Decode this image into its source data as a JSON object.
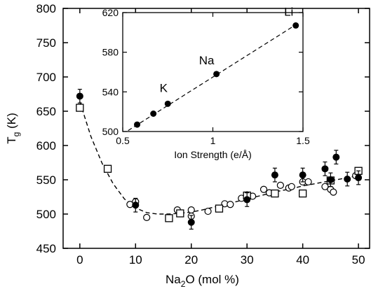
{
  "chart_data": [
    {
      "type": "scatter",
      "title": "",
      "xlabel": "Na2O (mol %)",
      "xlabel_parts": {
        "base": "Na",
        "sub": "2",
        "rest": "O (mol %)"
      },
      "ylabel": "Tg (K)",
      "ylabel_parts": {
        "base": "T",
        "sub": "g",
        "rest": " (K)"
      },
      "xlim": [
        -3,
        52
      ],
      "ylim": [
        450,
        800
      ],
      "xticks": [
        0,
        10,
        20,
        30,
        40,
        50
      ],
      "yticks": [
        450,
        500,
        550,
        600,
        650,
        700,
        750,
        800
      ],
      "grid": false,
      "series": [
        {
          "marker": "filled-circle",
          "points": [
            {
              "x": 0,
              "y": 672,
              "err": 10
            },
            {
              "x": 10,
              "y": 513,
              "err": 10
            },
            {
              "x": 20,
              "y": 488,
              "err": 10
            },
            {
              "x": 30,
              "y": 521,
              "err": 10
            },
            {
              "x": 35,
              "y": 557,
              "err": 10
            },
            {
              "x": 40,
              "y": 557,
              "err": 10
            },
            {
              "x": 44,
              "y": 566,
              "err": 10
            },
            {
              "x": 45,
              "y": 550,
              "err": 10
            },
            {
              "x": 46,
              "y": 583,
              "err": 10
            },
            {
              "x": 48,
              "y": 551,
              "err": 10
            },
            {
              "x": 50,
              "y": 553,
              "err": 10
            }
          ]
        },
        {
          "marker": "open-square",
          "points": [
            {
              "x": 0,
              "y": 655
            },
            {
              "x": 5,
              "y": 566
            },
            {
              "x": 16,
              "y": 494
            },
            {
              "x": 18,
              "y": 501
            },
            {
              "x": 25,
              "y": 508
            },
            {
              "x": 30,
              "y": 527
            },
            {
              "x": 35,
              "y": 530
            },
            {
              "x": 40,
              "y": 530
            },
            {
              "x": 45,
              "y": 549
            },
            {
              "x": 50,
              "y": 563
            }
          ]
        },
        {
          "marker": "open-circle",
          "points": [
            {
              "x": 9,
              "y": 514
            },
            {
              "x": 10,
              "y": 518
            },
            {
              "x": 12,
              "y": 495
            },
            {
              "x": 17.5,
              "y": 506
            },
            {
              "x": 20,
              "y": 506
            },
            {
              "x": 20,
              "y": 497
            },
            {
              "x": 23,
              "y": 504
            },
            {
              "x": 26,
              "y": 515
            },
            {
              "x": 27,
              "y": 514
            },
            {
              "x": 29,
              "y": 523
            },
            {
              "x": 30,
              "y": 528
            },
            {
              "x": 31,
              "y": 526
            },
            {
              "x": 33,
              "y": 536
            },
            {
              "x": 34,
              "y": 531
            },
            {
              "x": 36,
              "y": 542
            },
            {
              "x": 37.5,
              "y": 538
            },
            {
              "x": 38,
              "y": 540
            },
            {
              "x": 40,
              "y": 547
            },
            {
              "x": 41,
              "y": 547
            },
            {
              "x": 44,
              "y": 540
            },
            {
              "x": 45,
              "y": 536
            },
            {
              "x": 45.5,
              "y": 532
            },
            {
              "x": 49.5,
              "y": 556
            },
            {
              "x": 50,
              "y": 561
            }
          ]
        },
        {
          "name": "fit",
          "style": "dashed",
          "x": [
            0,
            2,
            4,
            6,
            8,
            10,
            12,
            14,
            16,
            18,
            20,
            22,
            24,
            26,
            28,
            30,
            32,
            34,
            36,
            38,
            40,
            42,
            44,
            46,
            48,
            50
          ],
          "values": [
            664,
            613,
            574,
            544,
            522,
            509,
            502,
            500,
            500,
            501,
            503,
            506,
            510,
            514,
            518,
            522,
            526,
            530,
            534,
            537,
            541,
            544,
            547,
            550,
            553,
            556
          ]
        }
      ]
    },
    {
      "type": "scatter",
      "title": "",
      "xlabel": "Ion Strength (e/Å)",
      "ylabel": "",
      "xlim": [
        0.5,
        1.5
      ],
      "ylim": [
        500,
        620
      ],
      "xticks": [
        0.5,
        1,
        1.5
      ],
      "xtick_labels": [
        "0.5",
        "1",
        "1.5"
      ],
      "yticks": [
        500,
        540,
        580,
        620
      ],
      "grid": false,
      "points": [
        {
          "x": 0.58,
          "y": 507
        },
        {
          "x": 0.67,
          "y": 518
        },
        {
          "x": 0.75,
          "y": 528
        },
        {
          "x": 1.02,
          "y": 558
        },
        {
          "x": 1.46,
          "y": 607
        }
      ],
      "annotations": [
        {
          "text": "K",
          "x": 0.75,
          "y": 528
        },
        {
          "text": "Na",
          "x": 1.02,
          "y": 558
        },
        {
          "text": "Li",
          "x": 1.46,
          "y": 607
        }
      ],
      "fit": {
        "style": "dashed",
        "x": [
          0.53,
          1.48
        ],
        "values": [
          501,
          610
        ]
      }
    }
  ]
}
